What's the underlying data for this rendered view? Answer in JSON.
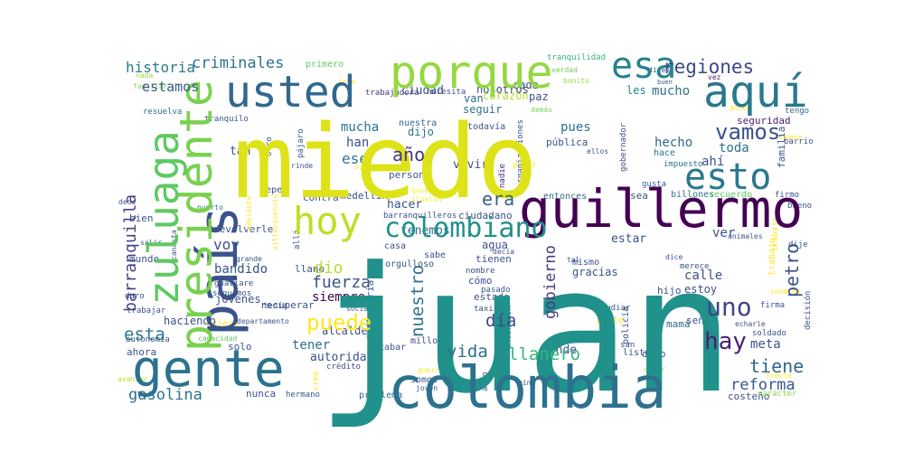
{
  "chart_data": {
    "type": "word_cloud",
    "colormap": "viridis",
    "background": "#ffffff",
    "words": [
      {
        "text": "juan",
        "color": "#21918c"
      },
      {
        "text": "miedo",
        "color": "#dde318"
      },
      {
        "text": "colombia",
        "color": "#2c728e"
      },
      {
        "text": "país",
        "color": "#3b528b"
      },
      {
        "text": "gente",
        "color": "#2c728e"
      },
      {
        "text": "guillermo",
        "color": "#440154"
      },
      {
        "text": "presidente",
        "color": "#7ad151"
      },
      {
        "text": "zuluaga",
        "color": "#5ec962"
      },
      {
        "text": "porque",
        "color": "#95d840"
      },
      {
        "text": "usted",
        "color": "#31688e"
      },
      {
        "text": "aquí",
        "color": "#2a788e"
      },
      {
        "text": "esa",
        "color": "#25838e"
      },
      {
        "text": "hoy",
        "color": "#bddf26"
      },
      {
        "text": "esto",
        "color": "#2a788e"
      },
      {
        "text": "colombiano",
        "color": "#21918c"
      },
      {
        "text": "uno",
        "color": "#414487"
      },
      {
        "text": "vamos",
        "color": "#3b528b"
      },
      {
        "text": "hay",
        "color": "#481f70"
      },
      {
        "text": "puede",
        "color": "#fde725"
      },
      {
        "text": "regiones",
        "color": "#3e4989"
      },
      {
        "text": "criminales",
        "color": "#2c728e"
      },
      {
        "text": "historia",
        "color": "#287c8e"
      },
      {
        "text": "estamos",
        "color": "#38598c"
      },
      {
        "text": "barranquilla",
        "color": "#414487"
      },
      {
        "text": "era",
        "color": "#355f8d"
      },
      {
        "text": "año",
        "color": "#443983"
      },
      {
        "text": "tiene",
        "color": "#31688e"
      },
      {
        "text": "reforma",
        "color": "#39568c"
      },
      {
        "text": "gasolina",
        "color": "#2c728e"
      },
      {
        "text": "petro",
        "color": "#3b528b"
      },
      {
        "text": "esta",
        "color": "#2a788e"
      },
      {
        "text": "vida",
        "color": "#2c728e"
      },
      {
        "text": "llanero",
        "color": "#35b779"
      },
      {
        "text": "nuestro",
        "color": "#2c728e"
      },
      {
        "text": "fuerza",
        "color": "#3b528b"
      },
      {
        "text": "dio",
        "color": "#b5de2b"
      },
      {
        "text": "día",
        "color": "#3e4989"
      },
      {
        "text": "gobierno",
        "color": "#433e85"
      }
    ]
  }
}
